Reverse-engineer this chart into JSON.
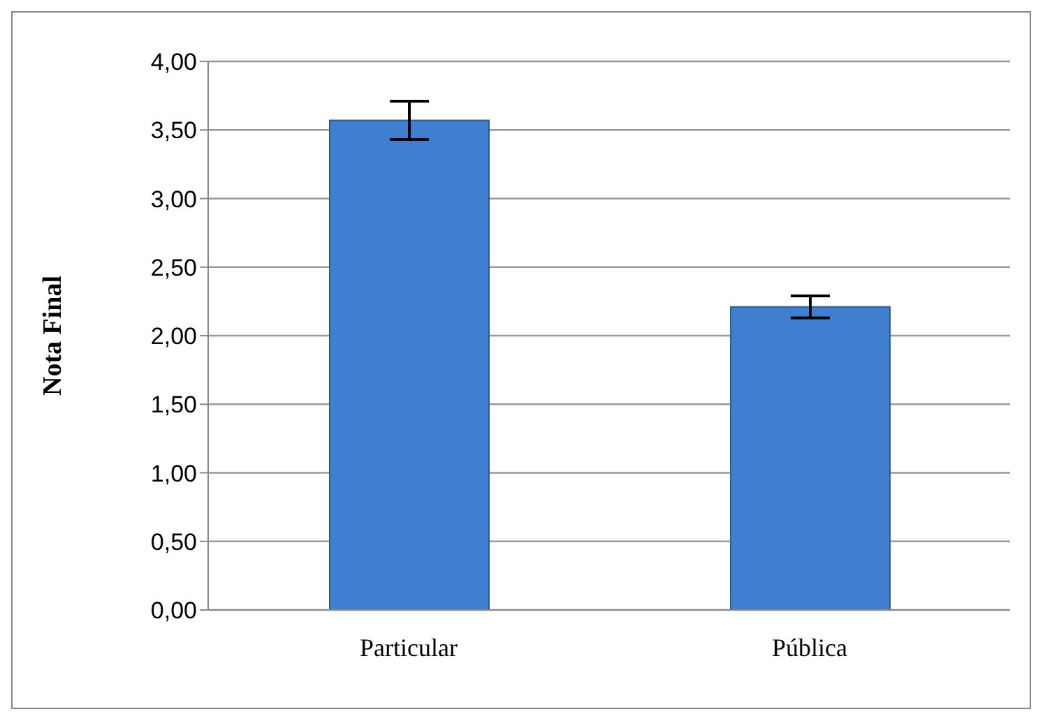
{
  "chart_data": {
    "type": "bar",
    "ylabel": "Nota Final",
    "categories": [
      "Particular",
      "Pública"
    ],
    "values": [
      3.57,
      2.21
    ],
    "errors": [
      0.14,
      0.08
    ],
    "color": "#3f7fd0",
    "ylim": [
      0,
      4
    ],
    "yticks": [
      {
        "value": 0,
        "label": "0,00"
      },
      {
        "value": 0.5,
        "label": "0,50"
      },
      {
        "value": 1,
        "label": "1,00"
      },
      {
        "value": 1.5,
        "label": "1,50"
      },
      {
        "value": 2,
        "label": "2,00"
      },
      {
        "value": 2.5,
        "label": "2,50"
      },
      {
        "value": 3,
        "label": "3,00"
      },
      {
        "value": 3.5,
        "label": "3,50"
      },
      {
        "value": 4,
        "label": "4,00"
      }
    ],
    "grid": "y"
  }
}
